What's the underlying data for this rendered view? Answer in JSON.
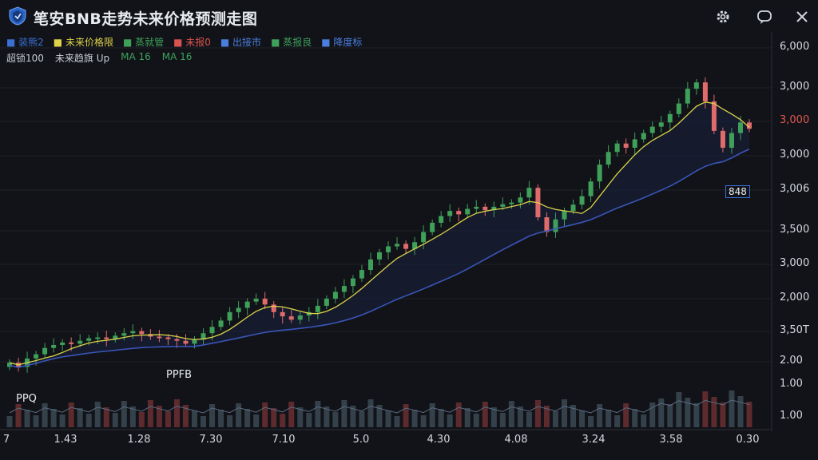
{
  "window": {
    "title": "笔安BNB走势未来价格预测走图",
    "settings_label": "⚙",
    "chat_label": "💬",
    "close_label": "✕"
  },
  "legend": {
    "row1": [
      {
        "label": "装熊2",
        "color": "#3b6fd4"
      },
      {
        "label": "未来价格限",
        "color": "#e0d34a"
      },
      {
        "label": "蒸就管",
        "color": "#3fa05a"
      },
      {
        "label": "未报0",
        "color": "#d9534f"
      },
      {
        "label": "出接市",
        "color": "#4a7fe0"
      },
      {
        "label": "蒸报良",
        "color": "#3fa05a"
      },
      {
        "label": "降度标",
        "color": "#4a7fe0"
      }
    ],
    "row2": [
      {
        "label": "超锁100",
        "color": "#c8ccd4"
      },
      {
        "label": "未来趋旗 Up",
        "color": "#c8ccd4"
      },
      {
        "label": "MA 16",
        "color": "#3fa05a"
      },
      {
        "label": "MA 16",
        "color": "#3fa05a"
      }
    ]
  },
  "annotations": {
    "left_bottom": "PPQ",
    "mid_label": "PPFB",
    "box_label": "848"
  },
  "chart_data": {
    "type": "candlestick",
    "y_ticks": [
      "6,000",
      "3,000",
      "3,000",
      "3,000",
      "3,006",
      "3,500",
      "3,000",
      "2,000",
      "3,50T",
      "2.00",
      "1.00",
      "1.00"
    ],
    "y_tick_colors": [
      "#d6d9df",
      "#d6d9df",
      "#e0574f",
      "#d6d9df",
      "#d6d9df",
      "#d6d9df",
      "#d6d9df",
      "#d6d9df",
      "#d6d9df",
      "#d6d9df",
      "#d6d9df",
      "#d6d9df"
    ],
    "x_ticks": [
      "7",
      "1.43",
      "1.28",
      "7.30",
      "7.10",
      "5.0",
      "4.30",
      "4.08",
      "3.24",
      "3.58",
      "0.30"
    ],
    "colors": {
      "up": "#3fa05a",
      "down": "#e06b6b",
      "ma_fast": "#d9d34a",
      "ma_slow": "#3a55b8",
      "volume_up": "#3b4a55",
      "volume_down": "#6b2f33"
    },
    "close": [
      2.1,
      2.0,
      2.2,
      2.3,
      2.45,
      2.52,
      2.58,
      2.55,
      2.62,
      2.68,
      2.7,
      2.66,
      2.74,
      2.8,
      2.85,
      2.78,
      2.72,
      2.7,
      2.66,
      2.62,
      2.55,
      2.65,
      2.8,
      2.95,
      3.1,
      3.3,
      3.4,
      3.55,
      3.62,
      3.48,
      3.3,
      3.2,
      3.12,
      3.22,
      3.3,
      3.45,
      3.62,
      3.78,
      3.92,
      4.1,
      4.3,
      4.55,
      4.72,
      4.86,
      4.92,
      4.8,
      4.96,
      5.2,
      5.42,
      5.58,
      5.7,
      5.62,
      5.75,
      5.8,
      5.72,
      5.8,
      5.86,
      5.9,
      6.02,
      6.25,
      5.55,
      5.2,
      5.5,
      5.7,
      5.85,
      6.05,
      6.4,
      6.8,
      7.1,
      7.3,
      7.2,
      7.4,
      7.55,
      7.7,
      7.8,
      8.0,
      8.25,
      8.6,
      8.75,
      8.3,
      7.6,
      7.2,
      7.55,
      7.8,
      7.65
    ]
  }
}
